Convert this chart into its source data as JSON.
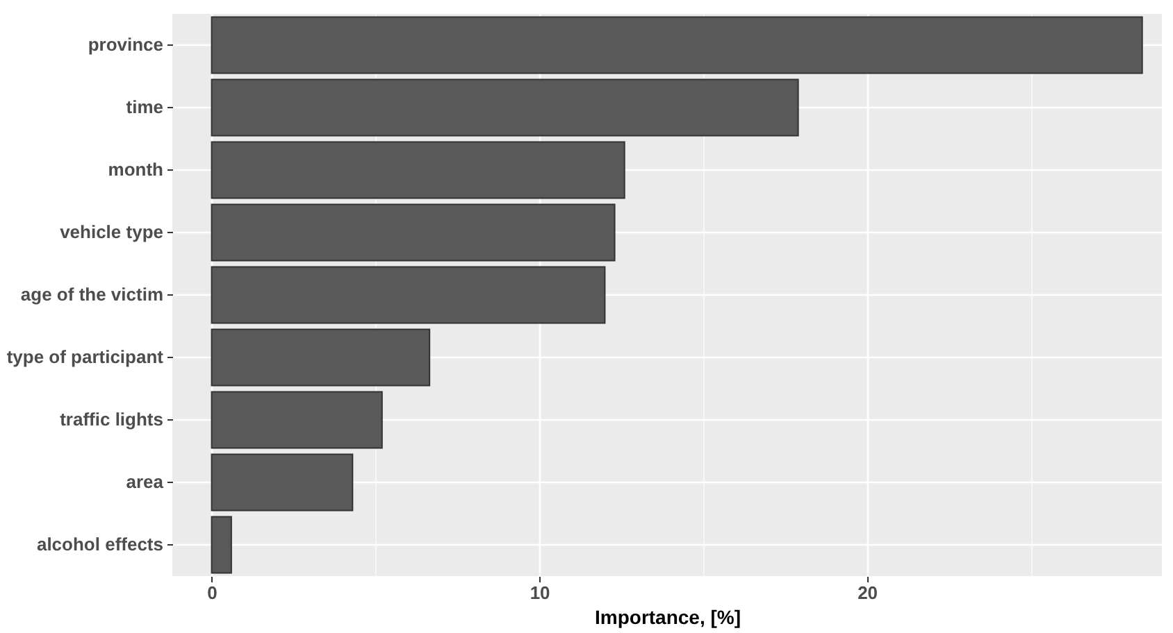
{
  "chart_data": {
    "type": "bar",
    "orientation": "horizontal",
    "xlabel": "Importance, [%]",
    "categories": [
      "province",
      "time",
      "month",
      "vehicle type",
      "age of the victim",
      "type of participant",
      "traffic lights",
      "area",
      "alcohol effects"
    ],
    "values": [
      28.4,
      17.9,
      12.6,
      12.3,
      12.0,
      6.65,
      5.2,
      4.3,
      0.6
    ],
    "color": "#595959",
    "xlim": [
      -1.2,
      29.0
    ],
    "xticks": [
      0,
      {
        "value": 5,
        "label": null
      },
      10,
      {
        "value": 15,
        "label": null
      },
      20,
      {
        "value": 25,
        "label": null
      }
    ],
    "grid": true
  }
}
